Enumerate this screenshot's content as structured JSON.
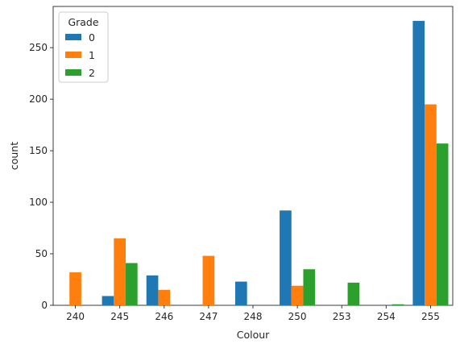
{
  "chart_data": {
    "type": "bar",
    "xlabel": "Colour",
    "ylabel": "count",
    "categories": [
      "240",
      "245",
      "246",
      "247",
      "248",
      "250",
      "253",
      "254",
      "255"
    ],
    "series": [
      {
        "name": "0",
        "color": "#1f77b4",
        "values": [
          0,
          9,
          29,
          0,
          23,
          92,
          0,
          0,
          276
        ]
      },
      {
        "name": "1",
        "color": "#ff7f0e",
        "values": [
          32,
          65,
          15,
          48,
          0,
          19,
          0,
          0,
          195
        ]
      },
      {
        "name": "2",
        "color": "#2ca02c",
        "values": [
          0,
          41,
          0,
          0,
          0,
          35,
          22,
          1,
          157
        ]
      }
    ],
    "ylim": [
      0,
      290
    ],
    "yticks": [
      0,
      50,
      100,
      150,
      200,
      250
    ],
    "legend": {
      "title": "Grade",
      "placement": "top-left"
    },
    "grid": false
  }
}
